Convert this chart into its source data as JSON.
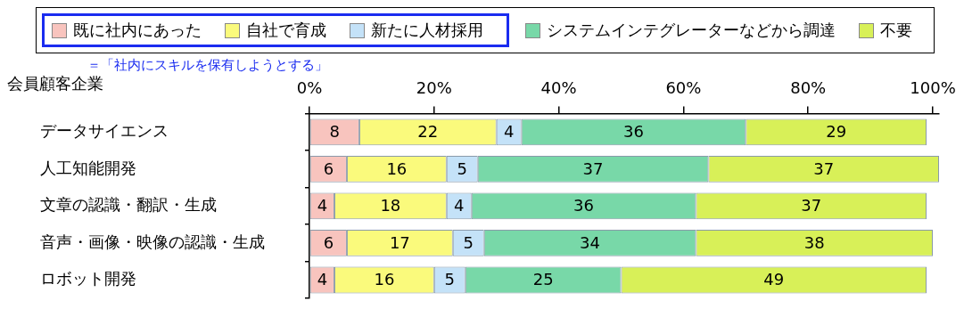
{
  "chart_data": {
    "type": "bar",
    "orientation": "horizontal",
    "stacked": true,
    "ylabel": "会員顧客企業",
    "categories": [
      "データサイエンス",
      "人工知能開発",
      "文章の認識・翻訳・生成",
      "音声・画像・映像の認識・生成",
      "ロボット開発"
    ],
    "series": [
      {
        "name": "既に社内にあった",
        "color": "#f8c4be",
        "values": [
          8,
          6,
          4,
          6,
          4
        ]
      },
      {
        "name": "自社で育成",
        "color": "#fafa7c",
        "values": [
          22,
          16,
          18,
          17,
          16
        ]
      },
      {
        "name": "新たに人材採用",
        "color": "#c4e2f8",
        "values": [
          4,
          5,
          4,
          5,
          5
        ]
      },
      {
        "name": "システムインテグレーターなどから調達",
        "color": "#78d8a8",
        "values": [
          36,
          37,
          36,
          34,
          25
        ]
      },
      {
        "name": "不要",
        "color": "#d8f058",
        "values": [
          29,
          37,
          37,
          38,
          49
        ]
      }
    ],
    "xlim": [
      0,
      101
    ],
    "xticks": [
      {
        "value": 0,
        "label": "0%"
      },
      {
        "value": 20,
        "label": "20%"
      },
      {
        "value": 40,
        "label": "40%"
      },
      {
        "value": 60,
        "label": "60%"
      },
      {
        "value": 80,
        "label": "80%"
      },
      {
        "value": 100,
        "label": "100%"
      }
    ],
    "data_labels": true,
    "legend": "top",
    "grid": false,
    "annotations": [
      "＝「社内にスキルを保有しようとする」"
    ]
  }
}
